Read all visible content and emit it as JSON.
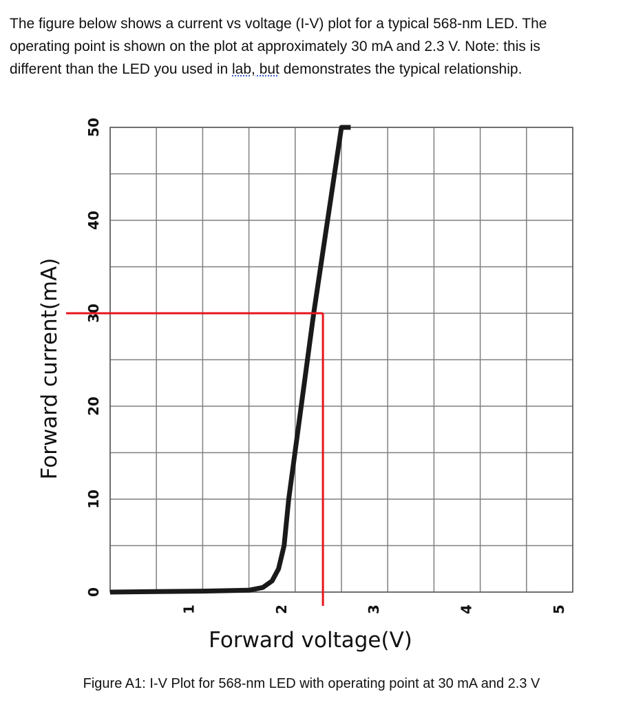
{
  "intro": {
    "line1": "The figure below shows a current vs voltage (I-V) plot for a typical 568-nm LED. The",
    "line2": "operating point is shown on the plot at approximately 30 mA and 2.3 V. Note: this is",
    "line3_before": "different than the LED you used in ",
    "line3_underlined": "lab, but",
    "line3_after": " demonstrates the typical relationship."
  },
  "caption": "Figure A1: I-V Plot for 568-nm LED with operating point at 30 mA and 2.3 V",
  "colors": {
    "curve": "#1a1a1a",
    "operating_point": "#e8141c",
    "grid": "#7f7f7f"
  },
  "chart_data": {
    "type": "line",
    "xlabel": "Forward voltage(V)",
    "ylabel": "Forward current(mA)",
    "xlim": [
      0,
      5
    ],
    "ylim": [
      0,
      50
    ],
    "x_ticks": [
      1,
      2,
      3,
      4,
      5
    ],
    "y_ticks": [
      0,
      10,
      20,
      30,
      40,
      50
    ],
    "grid": true,
    "series": [
      {
        "x": [
          0,
          0.5,
          1.0,
          1.5,
          1.65,
          1.75,
          1.82,
          1.88,
          1.93,
          2.2,
          2.5,
          2.6
        ],
        "y": [
          0,
          0.05,
          0.1,
          0.2,
          0.5,
          1.2,
          2.5,
          5.0,
          10,
          30,
          50,
          50
        ]
      }
    ],
    "operating_point": {
      "x": 2.3,
      "y": 30
    }
  }
}
